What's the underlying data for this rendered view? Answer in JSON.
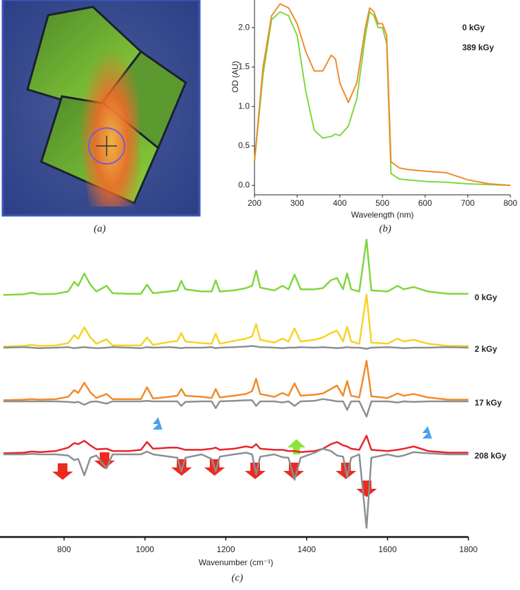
{
  "panels": [
    "(a)",
    "(b)",
    "(c)"
  ],
  "chart_data": [
    {
      "type": "line",
      "x_label": "Wavelength (nm)",
      "y_label": "OD (AU)",
      "x": [
        200,
        220,
        240,
        260,
        280,
        300,
        320,
        340,
        360,
        380,
        390,
        400,
        420,
        440,
        460,
        470,
        480,
        490,
        500,
        510,
        520,
        540,
        560,
        600,
        650,
        700,
        750,
        800
      ],
      "series": [
        {
          "name": "0 kGy",
          "color": "#7ed63c",
          "values": [
            0.3,
            1.4,
            2.1,
            2.2,
            2.15,
            1.9,
            1.2,
            0.7,
            0.6,
            0.62,
            0.65,
            0.63,
            0.75,
            1.1,
            1.9,
            2.2,
            2.15,
            2.0,
            2.0,
            1.8,
            0.15,
            0.08,
            0.07,
            0.05,
            0.04,
            0.02,
            0.01,
            0.0
          ]
        },
        {
          "name": "389 kGy",
          "color": "#f08a2c",
          "values": [
            0.3,
            1.5,
            2.15,
            2.3,
            2.25,
            2.05,
            1.7,
            1.45,
            1.45,
            1.65,
            1.6,
            1.3,
            1.05,
            1.3,
            2.0,
            2.25,
            2.2,
            2.05,
            2.05,
            1.9,
            0.3,
            0.22,
            0.2,
            0.18,
            0.16,
            0.07,
            0.02,
            0.0
          ]
        }
      ],
      "xlim": [
        200,
        800
      ],
      "xticks": [
        200,
        300,
        400,
        500,
        600,
        700,
        800
      ],
      "ylim": [
        -0.12,
        2.35
      ],
      "yticks": [
        {
          "value": 0,
          "label": "0.0"
        },
        0.5,
        {
          "value": 1,
          "label": "1.0"
        },
        1.5,
        {
          "value": 2,
          "label": "2.0"
        }
      ],
      "legend": "upper right"
    },
    {
      "type": "line",
      "x_label": "Wavenumber (cm⁻¹)",
      "x": [
        650,
        700,
        720,
        740,
        780,
        810,
        825,
        835,
        850,
        865,
        880,
        905,
        920,
        960,
        990,
        1005,
        1020,
        1060,
        1080,
        1090,
        1100,
        1140,
        1165,
        1175,
        1185,
        1220,
        1250,
        1265,
        1275,
        1285,
        1320,
        1340,
        1355,
        1370,
        1385,
        1420,
        1440,
        1460,
        1475,
        1490,
        1500,
        1510,
        1530,
        1548,
        1560,
        1600,
        1625,
        1640,
        1665,
        1700,
        1750,
        1800
      ],
      "difference_color": "#8a8f92",
      "series": [
        {
          "name": "0 kGy",
          "color": "#7ed63c",
          "values": [
            2,
            3,
            6,
            3,
            4,
            8,
            25,
            18,
            40,
            20,
            8,
            18,
            5,
            4,
            4,
            20,
            5,
            8,
            10,
            27,
            12,
            8,
            8,
            28,
            8,
            10,
            14,
            18,
            45,
            15,
            10,
            18,
            12,
            38,
            12,
            12,
            14,
            28,
            32,
            12,
            40,
            12,
            8,
            100,
            10,
            8,
            18,
            12,
            16,
            8,
            4,
            4
          ]
        },
        {
          "name": "2 kGy",
          "color": "#f5d327",
          "values": [
            2,
            3,
            5,
            3,
            4,
            8,
            22,
            16,
            36,
            18,
            7,
            15,
            4,
            4,
            4,
            18,
            5,
            10,
            12,
            26,
            11,
            8,
            7,
            25,
            7,
            12,
            16,
            20,
            42,
            14,
            9,
            16,
            11,
            34,
            11,
            14,
            18,
            26,
            30,
            11,
            37,
            11,
            7,
            94,
            9,
            7,
            16,
            11,
            14,
            7,
            3,
            3
          ],
          "difference": [
            0,
            1,
            0,
            -1,
            0,
            1,
            -1,
            0,
            1,
            0,
            -1,
            0,
            1,
            0,
            -1,
            1,
            0,
            1,
            0,
            -1,
            0,
            0,
            1,
            -1,
            0,
            1,
            2,
            3,
            2,
            1,
            0,
            -1,
            0,
            0,
            1,
            0,
            1,
            0,
            -1,
            0,
            1,
            0,
            0,
            -2,
            0,
            1,
            0,
            -1,
            0,
            0,
            1,
            0
          ]
        },
        {
          "name": "17 kGy",
          "color": "#f08a2c",
          "values": [
            2,
            3,
            4,
            3,
            4,
            8,
            20,
            15,
            33,
            16,
            6,
            13,
            4,
            4,
            4,
            25,
            5,
            8,
            10,
            22,
            10,
            8,
            6,
            22,
            7,
            10,
            13,
            18,
            40,
            13,
            8,
            15,
            10,
            32,
            10,
            12,
            14,
            22,
            28,
            10,
            36,
            10,
            7,
            72,
            9,
            6,
            14,
            10,
            13,
            7,
            3,
            3
          ],
          "difference": [
            0,
            0,
            0,
            0,
            0,
            -1,
            -2,
            -1,
            -6,
            -1,
            0,
            -4,
            0,
            0,
            0,
            1,
            0,
            0,
            0,
            -8,
            -1,
            0,
            0,
            -12,
            0,
            1,
            2,
            2,
            -8,
            0,
            0,
            -2,
            0,
            -8,
            0,
            1,
            4,
            2,
            0,
            0,
            -15,
            0,
            0,
            -27,
            0,
            0,
            -2,
            0,
            -1,
            0,
            0,
            0
          ]
        },
        {
          "name": "208 kGy",
          "color": "#e8232a",
          "label_color": "#e84a5c",
          "values": [
            2,
            3,
            5,
            4,
            6,
            12,
            20,
            18,
            24,
            16,
            9,
            10,
            6,
            6,
            8,
            22,
            10,
            12,
            12,
            10,
            8,
            8,
            10,
            12,
            8,
            10,
            14,
            12,
            18,
            10,
            8,
            8,
            6,
            6,
            4,
            6,
            10,
            18,
            22,
            16,
            14,
            10,
            8,
            33,
            8,
            6,
            8,
            10,
            14,
            6,
            3,
            3
          ],
          "difference": [
            0,
            0,
            1,
            0,
            0,
            -2,
            -10,
            -8,
            -37,
            -6,
            -2,
            -25,
            0,
            0,
            0,
            5,
            0,
            -4,
            -6,
            -30,
            -6,
            0,
            -8,
            -30,
            -4,
            0,
            3,
            0,
            -35,
            -4,
            0,
            -5,
            -6,
            -45,
            -6,
            3,
            10,
            6,
            -2,
            -4,
            -40,
            -6,
            0,
            -130,
            -6,
            0,
            -4,
            -2,
            4,
            2,
            0,
            0
          ]
        }
      ],
      "xlim": [
        650,
        1800
      ],
      "xticks": [
        800,
        1000,
        1200,
        1400,
        1600,
        1800
      ]
    }
  ]
}
